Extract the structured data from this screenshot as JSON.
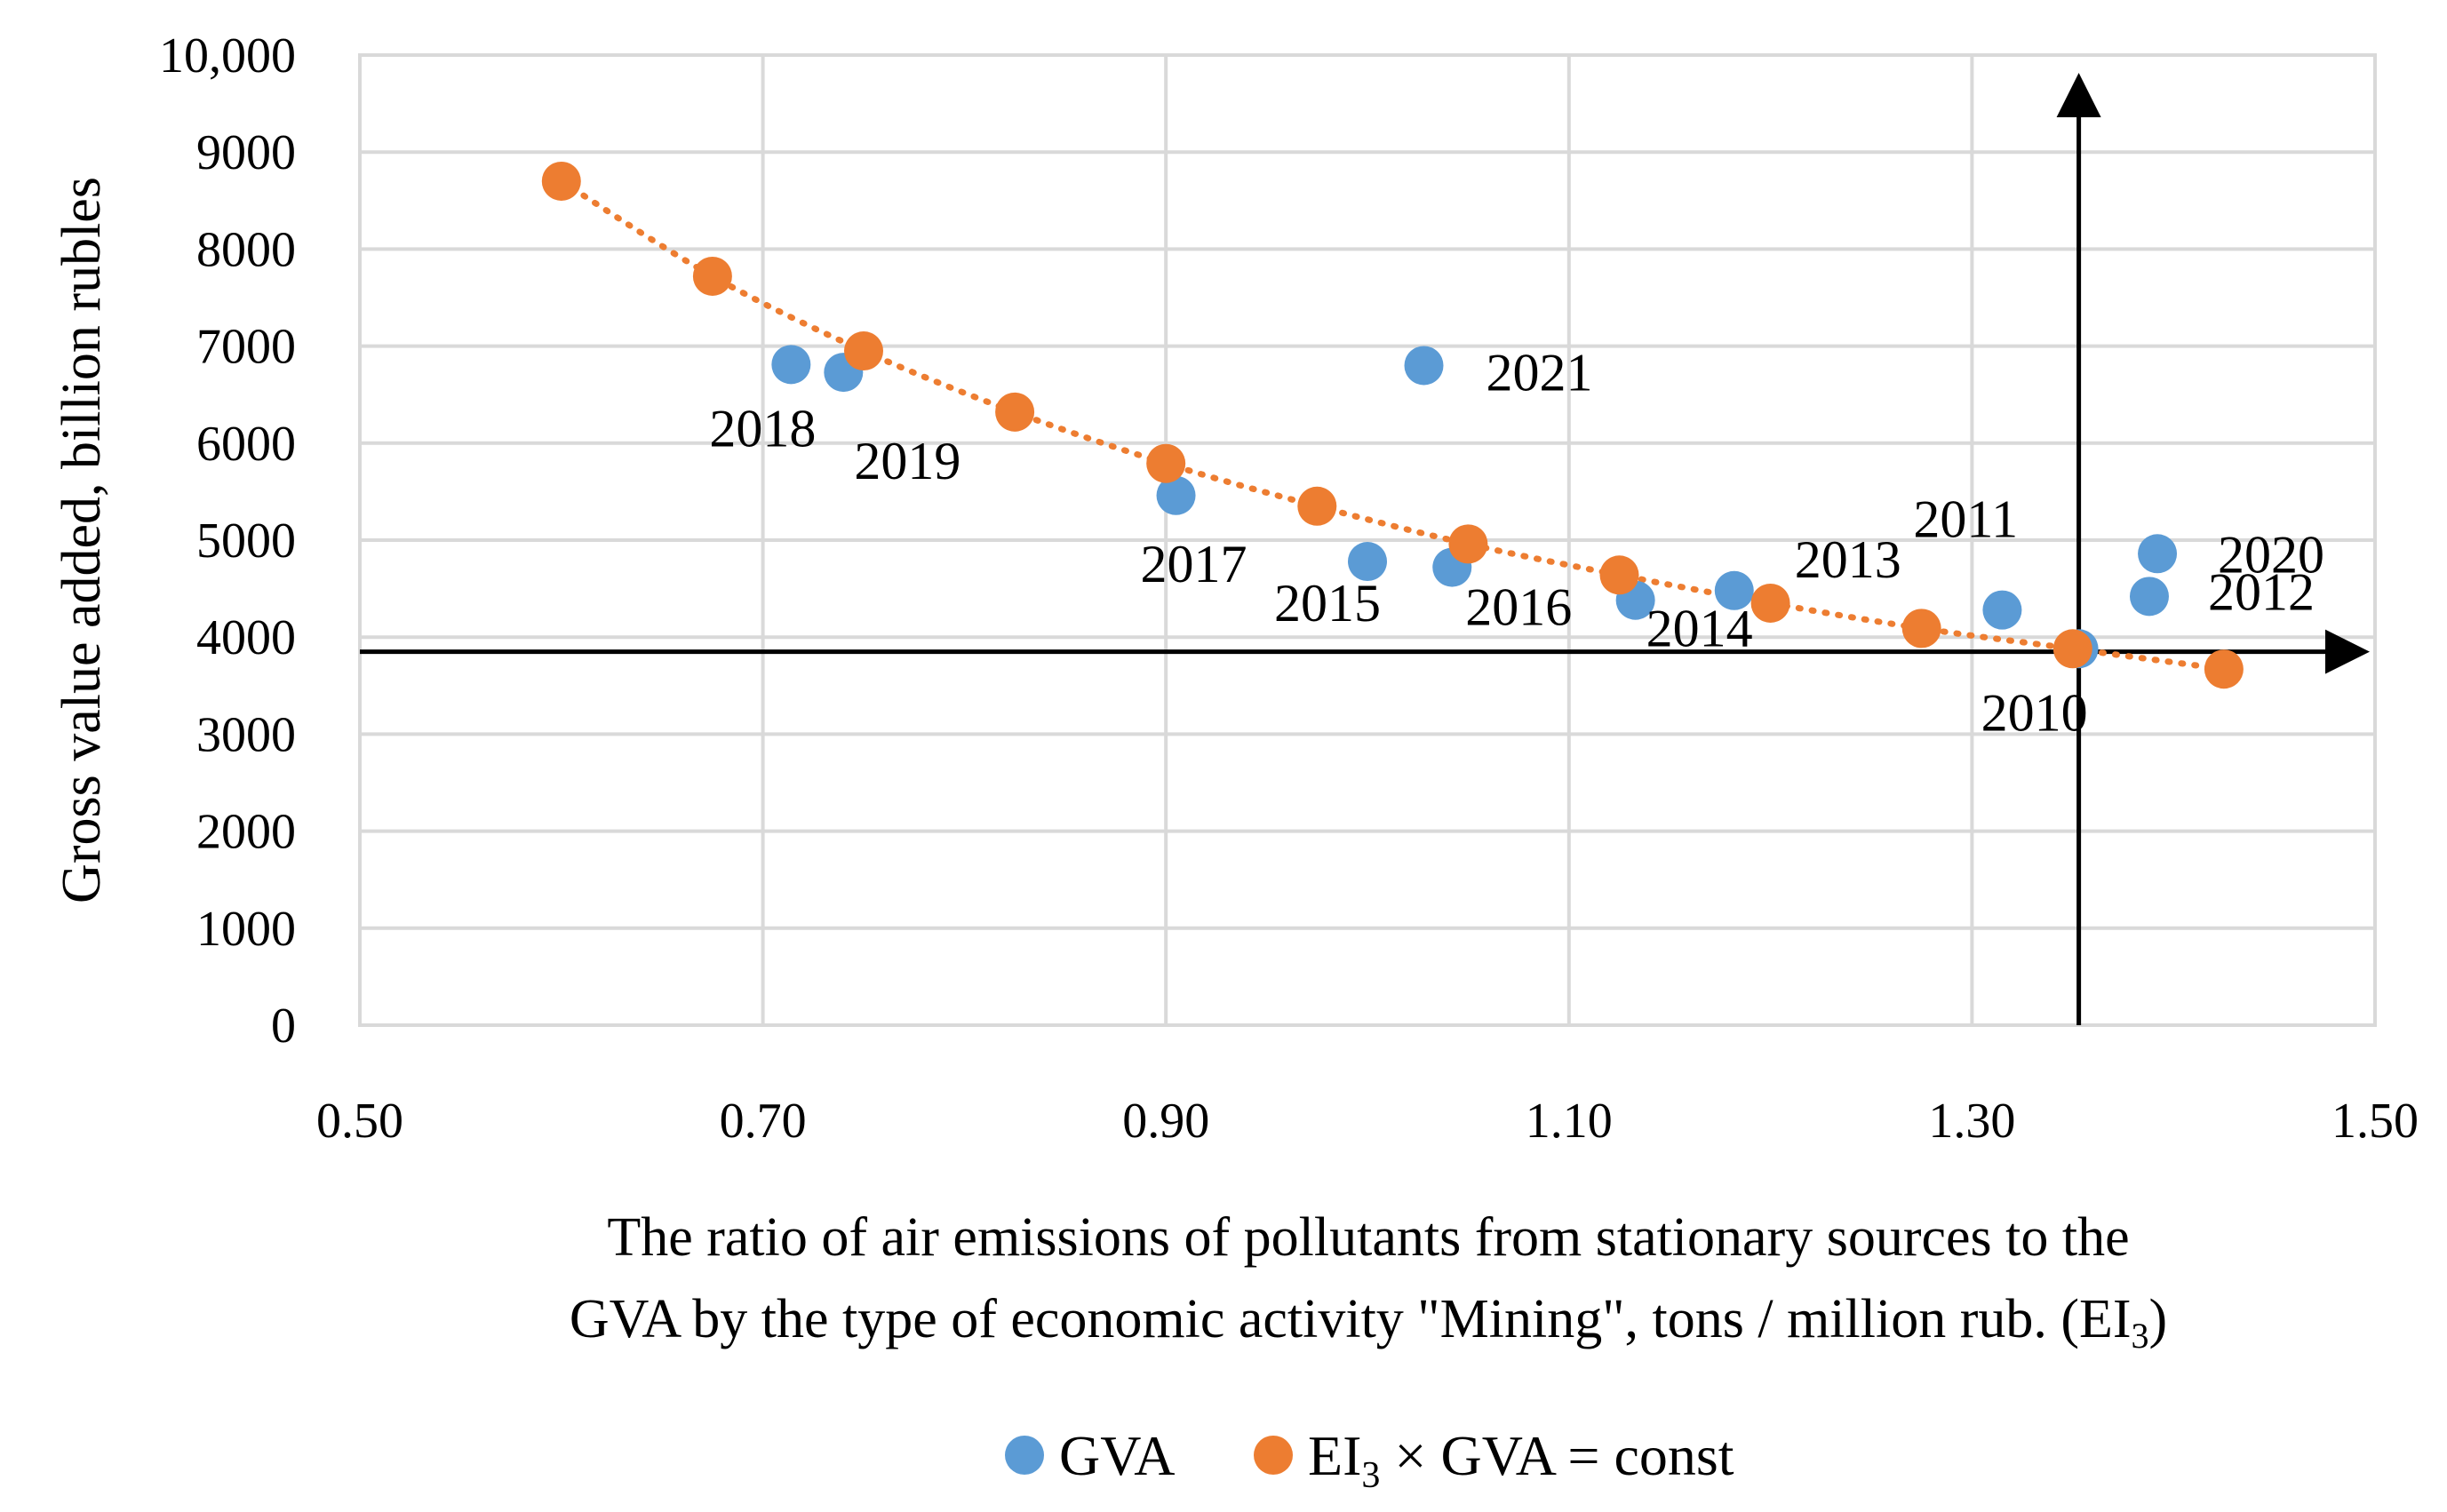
{
  "chart_data": {
    "type": "scatter",
    "title": "",
    "xlabel_line1": "The ratio of air emissions of pollutants from stationary sources to the",
    "xlabel_line2": "GVA by the type of economic activity \"Mining\", tons / million rub. (EI",
    "xlabel_sub": "3",
    "xlabel_end": ")",
    "ylabel": "Gross value added, billion rubles",
    "xlim": [
      0.5,
      1.5
    ],
    "ylim": [
      0,
      10000
    ],
    "x_ticks": [
      0.5,
      0.7,
      0.9,
      1.1,
      1.3,
      1.5
    ],
    "x_tick_labels": [
      "0.50",
      "0.70",
      "0.90",
      "1.10",
      "1.30",
      "1.50"
    ],
    "y_ticks": [
      0,
      1000,
      2000,
      3000,
      4000,
      5000,
      6000,
      7000,
      8000,
      9000,
      10000
    ],
    "y_tick_labels": [
      "0",
      "1000",
      "2000",
      "3000",
      "4000",
      "5000",
      "6000",
      "7000",
      "8000",
      "9000",
      "10,000"
    ],
    "grid": true,
    "legend_position": "bottom",
    "reference_lines": {
      "x": 1.353,
      "y": 3850
    },
    "series": [
      {
        "name": "GVA",
        "color": "#5b9bd5",
        "points": [
          {
            "year": "2010",
            "x": 1.353,
            "y": 3880
          },
          {
            "year": "2011",
            "x": 1.315,
            "y": 4280
          },
          {
            "year": "2012",
            "x": 1.388,
            "y": 4420
          },
          {
            "year": "2013",
            "x": 1.182,
            "y": 4480
          },
          {
            "year": "2014",
            "x": 1.133,
            "y": 4380
          },
          {
            "year": "2015",
            "x": 1.0,
            "y": 4780
          },
          {
            "year": "2016",
            "x": 1.042,
            "y": 4720
          },
          {
            "year": "2017",
            "x": 0.905,
            "y": 5460
          },
          {
            "year": "2018",
            "x": 0.714,
            "y": 6810
          },
          {
            "year": "2019",
            "x": 0.74,
            "y": 6730
          },
          {
            "year": "2020",
            "x": 1.392,
            "y": 4860
          },
          {
            "year": "2021",
            "x": 1.028,
            "y": 6800
          }
        ]
      },
      {
        "name": "EI3 × GVA = const",
        "legend_prefix": "EI",
        "legend_sub": "3",
        "legend_suffix": " × GVA = const",
        "color": "#ed7d31",
        "points": [
          {
            "x": 0.6,
            "y": 8700
          },
          {
            "x": 0.675,
            "y": 7720
          },
          {
            "x": 0.75,
            "y": 6950
          },
          {
            "x": 0.825,
            "y": 6320
          },
          {
            "x": 0.9,
            "y": 5790
          },
          {
            "x": 0.975,
            "y": 5350
          },
          {
            "x": 1.05,
            "y": 4960
          },
          {
            "x": 1.125,
            "y": 4640
          },
          {
            "x": 1.2,
            "y": 4350
          },
          {
            "x": 1.275,
            "y": 4090
          },
          {
            "x": 1.35,
            "y": 3880
          },
          {
            "x": 1.425,
            "y": 3670
          }
        ]
      }
    ]
  }
}
